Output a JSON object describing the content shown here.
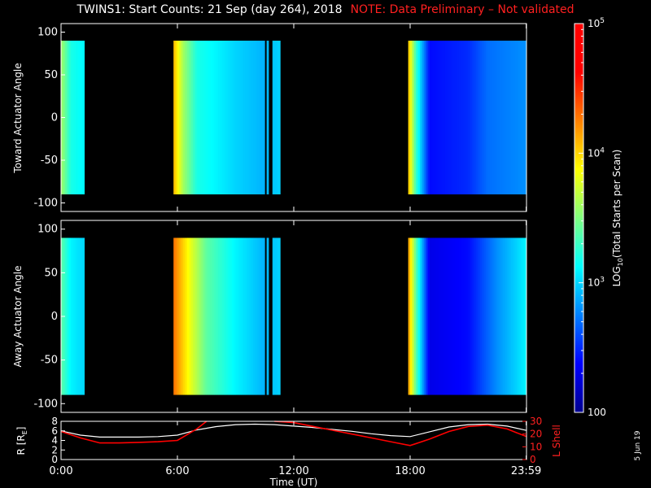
{
  "title": "TWINS1: Start Counts: 21 Sep (day 264), 2018",
  "note": "NOTE: Data Preliminary – Not validated",
  "footer_date": "5 Jun 19",
  "colors": {
    "note": "#ff2020",
    "lshell": "#ff0000",
    "radius": "#ffffff"
  },
  "chart_data": [
    {
      "type": "heatmap",
      "panel": "toward",
      "ylabel": "Toward Actuator Angle",
      "ylim": [
        -110,
        110
      ],
      "yticks": [
        100,
        50,
        0,
        -50,
        -100
      ],
      "data_ylim": [
        -90,
        90
      ],
      "xlim_hours": [
        0,
        24
      ],
      "data_segments_hours": [
        [
          0,
          1.2
        ],
        [
          5.8,
          10.7
        ],
        [
          10.9,
          11.3
        ],
        [
          17.9,
          24
        ]
      ],
      "dropouts_hours": [
        [
          10.45,
          10.55
        ]
      ],
      "level_profile_log10": [
        [
          0,
          3.6
        ],
        [
          0.5,
          3.2
        ],
        [
          1.2,
          3.1
        ],
        [
          5.8,
          4.1
        ],
        [
          6.3,
          3.6
        ],
        [
          7.0,
          3.2
        ],
        [
          9.0,
          3.0
        ],
        [
          10.5,
          2.9
        ],
        [
          11.3,
          3.0
        ],
        [
          17.9,
          4.1
        ],
        [
          18.3,
          3.3
        ],
        [
          19.0,
          2.4
        ],
        [
          21.0,
          2.5
        ],
        [
          22.0,
          2.7
        ],
        [
          24.0,
          2.8
        ]
      ],
      "level_note": "dominant log10 count level over time"
    },
    {
      "type": "heatmap",
      "panel": "away",
      "ylabel": "Away Actuator Angle",
      "ylim": [
        -110,
        110
      ],
      "yticks": [
        100,
        50,
        0,
        -50,
        -100
      ],
      "data_ylim": [
        -90,
        90
      ],
      "xlim_hours": [
        0,
        24
      ],
      "data_segments_hours": [
        [
          0,
          1.2
        ],
        [
          5.8,
          10.7
        ],
        [
          10.9,
          11.3
        ],
        [
          17.9,
          24
        ]
      ],
      "dropouts_hours": [
        [
          10.45,
          10.55
        ]
      ],
      "level_profile_log10": [
        [
          0,
          3.4
        ],
        [
          0.5,
          3.1
        ],
        [
          1.2,
          3.0
        ],
        [
          5.8,
          4.3
        ],
        [
          6.5,
          3.9
        ],
        [
          7.5,
          3.4
        ],
        [
          9.0,
          3.1
        ],
        [
          10.5,
          2.9
        ],
        [
          11.3,
          3.0
        ],
        [
          17.9,
          4.2
        ],
        [
          18.3,
          3.4
        ],
        [
          19.0,
          2.3
        ],
        [
          21.0,
          2.4
        ],
        [
          22.5,
          2.8
        ],
        [
          24.0,
          3.1
        ]
      ]
    },
    {
      "type": "line",
      "panel": "orbit",
      "ylabel_left": "R [R",
      "ylabel_left_sub": "E",
      "ylabel_left_close": "]",
      "ylabel_right": "L Shell",
      "ylim_left": [
        0,
        8
      ],
      "yticks_left": [
        0,
        2,
        4,
        6,
        8
      ],
      "ylim_right": [
        0,
        30
      ],
      "yticks_right": [
        0,
        10,
        20,
        30
      ],
      "xlim_hours": [
        0,
        24
      ],
      "xticks_hours": [
        0,
        6,
        12,
        18,
        23.983
      ],
      "xtick_labels": [
        "0:00",
        "6:00",
        "12:00",
        "18:00",
        "23:59"
      ],
      "xlabel": "Time (UT)",
      "series": [
        {
          "axis": "left",
          "color": "#ffffff",
          "x": [
            0,
            1,
            2,
            3,
            4,
            5,
            6,
            7,
            8,
            9,
            10,
            11,
            12,
            13,
            14,
            15,
            16,
            17,
            18,
            19,
            20,
            21,
            22,
            23,
            24
          ],
          "y": [
            6.0,
            5.1,
            4.7,
            4.7,
            4.7,
            4.8,
            5.1,
            6.2,
            6.9,
            7.3,
            7.4,
            7.3,
            7.0,
            6.7,
            6.3,
            5.9,
            5.4,
            5.0,
            4.8,
            5.8,
            6.8,
            7.3,
            7.4,
            7.0,
            6.1
          ]
        },
        {
          "axis": "right",
          "color": "#ff0000",
          "x": [
            0,
            1,
            2,
            3,
            4,
            5,
            6,
            7,
            7.5,
            null,
            11.0,
            12,
            13,
            14,
            15,
            16,
            17,
            18,
            19,
            20,
            21,
            22,
            23,
            24
          ],
          "y": [
            22,
            17,
            13,
            13,
            13.5,
            14,
            15,
            24,
            32,
            null,
            32,
            29,
            26,
            23,
            20,
            17,
            14,
            11,
            16,
            22,
            26,
            27,
            24,
            18
          ]
        }
      ]
    }
  ],
  "colorbar": {
    "label": "LOG",
    "label_sub": "10",
    "label_rest": "(Total Starts per Scan)",
    "scale": "log",
    "range": [
      100,
      100000
    ],
    "tick_labels": [
      {
        "value": 100000,
        "base": "10",
        "exp": "5"
      },
      {
        "value": 10000,
        "base": "10",
        "exp": "4"
      },
      {
        "value": 1000,
        "base": "10",
        "exp": "3"
      },
      {
        "value": 100,
        "text": "100"
      }
    ]
  }
}
